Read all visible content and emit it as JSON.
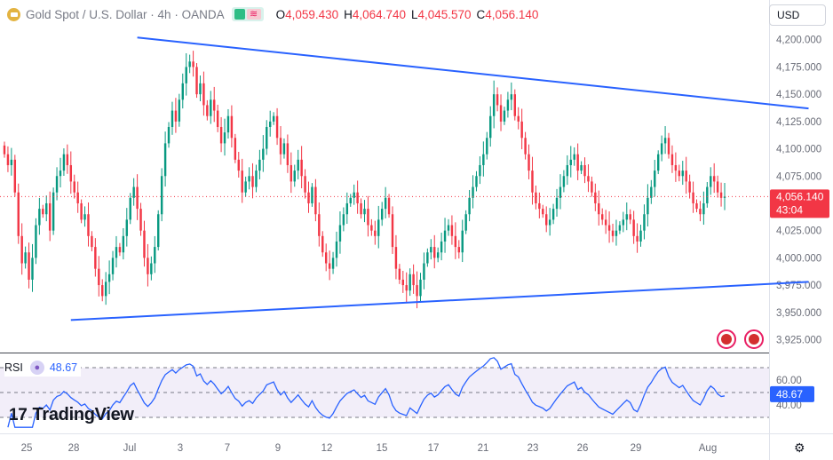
{
  "header": {
    "title": "Gold Spot / U.S. Dollar · 4h · OANDA",
    "o_label": "O",
    "o_value": "4,059.430",
    "h_label": "H",
    "h_value": "4,064.740",
    "l_label": "L",
    "l_value": "4,045.570",
    "c_label": "C",
    "c_value": "4,056.140"
  },
  "currency_button": "USD",
  "brand": "TradingView",
  "rsi": {
    "label": "RSI",
    "value": "48.67",
    "levels": [
      "60.00",
      "40.00"
    ],
    "badge": "48.67"
  },
  "price_badge": {
    "price": "4,056.140",
    "countdown": "43:04"
  },
  "colors": {
    "up": "#089981",
    "down": "#f23645",
    "trendline": "#2962ff",
    "rsi": "#2962ff",
    "rsi_band": "#7e57c2"
  },
  "chart_data": {
    "type": "candlestick",
    "symbol": "XAUUSD",
    "y_ticks": [
      3925,
      3950,
      3975,
      4000,
      4025,
      4050,
      4075,
      4100,
      4125,
      4150,
      4175,
      4200
    ],
    "y_tick_labels": [
      "3,925.000",
      "3,950.000",
      "3,975.000",
      "4,000.000",
      "4,025.000",
      "4,050.000",
      "4,075.000",
      "4,100.000",
      "4,125.000",
      "4,150.000",
      "4,175.000",
      "4,200.000"
    ],
    "ylim": [
      3914,
      4212
    ],
    "x_tick_labels": [
      "25",
      "28",
      "Jul",
      "3",
      "7",
      "9",
      "12",
      "15",
      "17",
      "21",
      "23",
      "26",
      "29",
      "Aug"
    ],
    "last_price": 4056.14,
    "trendlines": [
      {
        "from": [
          38,
          4202
        ],
        "to": [
          230,
          4137
        ]
      },
      {
        "from": [
          19,
          3943
        ],
        "to": [
          230,
          3978
        ]
      }
    ],
    "closes": [
      4095,
      4085,
      4090,
      4060,
      4020,
      3995,
      4005,
      3980,
      4000,
      4030,
      4045,
      4040,
      4050,
      4025,
      4060,
      4075,
      4080,
      4095,
      4085,
      4070,
      4060,
      4050,
      4035,
      4040,
      4020,
      4010,
      3990,
      3975,
      3965,
      3978,
      3985,
      4000,
      4010,
      4005,
      4020,
      4035,
      4055,
      4065,
      4045,
      4025,
      4000,
      3985,
      3995,
      4010,
      4040,
      4075,
      4105,
      4120,
      4135,
      4125,
      4145,
      4160,
      4175,
      4180,
      4175,
      4150,
      4160,
      4140,
      4130,
      4145,
      4135,
      4120,
      4105,
      4115,
      4130,
      4110,
      4090,
      4080,
      4060,
      4070,
      4075,
      4065,
      4080,
      4090,
      4100,
      4120,
      4125,
      4130,
      4110,
      4095,
      4105,
      4085,
      4070,
      4080,
      4090,
      4075,
      4060,
      4050,
      4065,
      4040,
      4020,
      4005,
      3995,
      3990,
      4000,
      4015,
      4030,
      4040,
      4050,
      4055,
      4060,
      4050,
      4040,
      4045,
      4030,
      4025,
      4020,
      4035,
      4045,
      4055,
      4040,
      4010,
      3990,
      3980,
      3975,
      3970,
      3985,
      3975,
      3965,
      3980,
      3995,
      4005,
      4010,
      4000,
      4005,
      4015,
      4025,
      4030,
      4020,
      4010,
      4005,
      4025,
      4040,
      4055,
      4065,
      4075,
      4085,
      4095,
      4110,
      4130,
      4150,
      4140,
      4125,
      4135,
      4145,
      4150,
      4130,
      4125,
      4110,
      4095,
      4080,
      4060,
      4050,
      4045,
      4040,
      4030,
      4035,
      4045,
      4055,
      4065,
      4075,
      4085,
      4090,
      4095,
      4080,
      4085,
      4075,
      4070,
      4060,
      4050,
      4040,
      4035,
      4030,
      4025,
      4020,
      4025,
      4030,
      4035,
      4040,
      4035,
      4020,
      4015,
      4025,
      4040,
      4055,
      4065,
      4080,
      4095,
      4105,
      4110,
      4095,
      4085,
      4080,
      4075,
      4080,
      4070,
      4060,
      4050,
      4045,
      4040,
      4050,
      4065,
      4075,
      4070,
      4060,
      4055,
      4056.14
    ],
    "rsi_ylim": [
      20,
      80
    ],
    "rsi_levels": [
      70,
      50,
      30
    ]
  }
}
